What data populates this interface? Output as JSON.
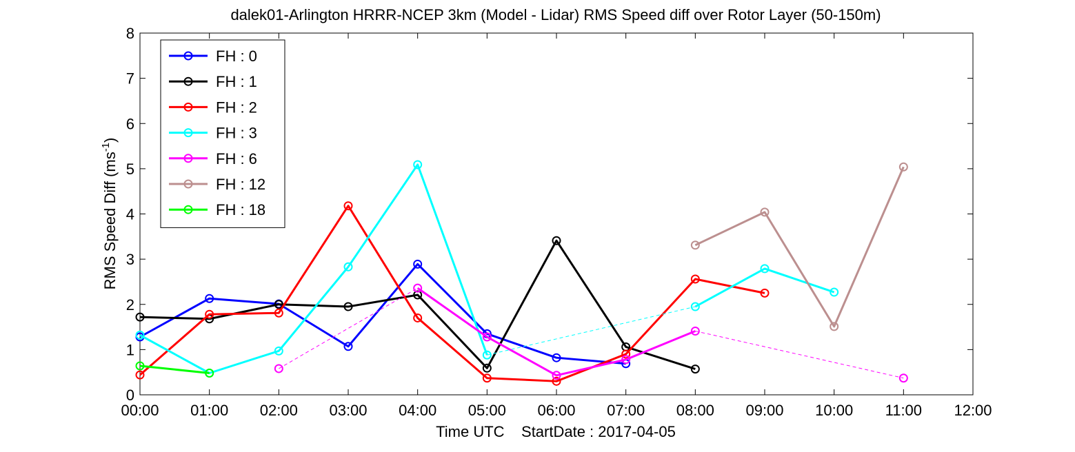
{
  "chart_data": {
    "type": "line",
    "title": "dalek01-Arlington HRRR-NCEP 3km (Model - Lidar) RMS Speed diff over Rotor Layer (50-150m)",
    "xlabel": "Time UTC    StartDate : 2017-04-05",
    "ylabel_main": "RMS Speed Diff (ms",
    "ylabel_sup": "-1",
    "ylabel_close": ")",
    "xlim": [
      0,
      12
    ],
    "ylim": [
      0,
      8
    ],
    "x_ticks": [
      0,
      1,
      2,
      3,
      4,
      5,
      6,
      7,
      8,
      9,
      10,
      11,
      12
    ],
    "x_tick_labels": [
      "00:00",
      "01:00",
      "02:00",
      "03:00",
      "04:00",
      "05:00",
      "06:00",
      "07:00",
      "08:00",
      "09:00",
      "10:00",
      "11:00",
      "12:00"
    ],
    "y_ticks": [
      0,
      1,
      2,
      3,
      4,
      5,
      6,
      7,
      8
    ],
    "y_tick_labels": [
      "0",
      "1",
      "2",
      "3",
      "4",
      "5",
      "6",
      "7",
      "8"
    ],
    "grid": false,
    "legend_position": "top-left",
    "series": [
      {
        "name": "FH : 0",
        "color": "#0000ff",
        "points": [
          [
            0,
            1.28
          ],
          [
            1,
            2.13
          ],
          [
            2,
            2.01
          ],
          [
            3,
            1.07
          ],
          [
            4,
            2.89
          ],
          [
            5,
            1.35
          ],
          [
            6,
            0.82
          ],
          [
            7,
            0.69
          ]
        ],
        "gap_links": []
      },
      {
        "name": "FH : 1",
        "color": "#000000",
        "points": [
          [
            0,
            1.72
          ],
          [
            1,
            1.68
          ],
          [
            2,
            2.0
          ],
          [
            3,
            1.95
          ],
          [
            4,
            2.21
          ],
          [
            5,
            0.59
          ],
          [
            6,
            3.41
          ],
          [
            7,
            1.06
          ],
          [
            8,
            0.57
          ]
        ],
        "gap_links": []
      },
      {
        "name": "FH : 2",
        "color": "#ff0000",
        "points": [
          [
            0,
            0.44
          ],
          [
            1,
            1.78
          ],
          [
            2,
            1.81
          ],
          [
            3,
            4.18
          ],
          [
            4,
            1.7
          ],
          [
            5,
            0.37
          ],
          [
            6,
            0.3
          ],
          [
            7,
            0.9
          ],
          [
            8,
            2.56
          ],
          [
            9,
            2.25
          ]
        ],
        "gap_links": []
      },
      {
        "name": "FH : 3",
        "color": "#00ffff",
        "points": [
          [
            0,
            1.32
          ],
          [
            1,
            0.48
          ],
          [
            2,
            0.97
          ],
          [
            3,
            2.83
          ],
          [
            4,
            5.09
          ],
          [
            5,
            0.88
          ],
          [
            8,
            1.95
          ],
          [
            9,
            2.79
          ],
          [
            10,
            2.27
          ]
        ],
        "gap_links": [
          [
            5,
            8
          ]
        ]
      },
      {
        "name": "FH : 6",
        "color": "#ff00ff",
        "points": [
          [
            2,
            0.58
          ],
          [
            4,
            2.36
          ],
          [
            5,
            1.28
          ],
          [
            6,
            0.43
          ],
          [
            7,
            0.78
          ],
          [
            8,
            1.41
          ],
          [
            11,
            0.37
          ]
        ],
        "gap_links": [
          [
            2,
            4
          ],
          [
            8,
            11
          ]
        ]
      },
      {
        "name": "FH : 12",
        "color": "#bc8f8f",
        "points": [
          [
            8,
            3.31
          ],
          [
            9,
            4.04
          ],
          [
            10,
            1.51
          ],
          [
            11,
            5.04
          ]
        ],
        "gap_links": []
      },
      {
        "name": "FH : 18",
        "color": "#00ff00",
        "points": [
          [
            0,
            0.64
          ],
          [
            1,
            0.48
          ]
        ],
        "gap_links": []
      }
    ]
  }
}
